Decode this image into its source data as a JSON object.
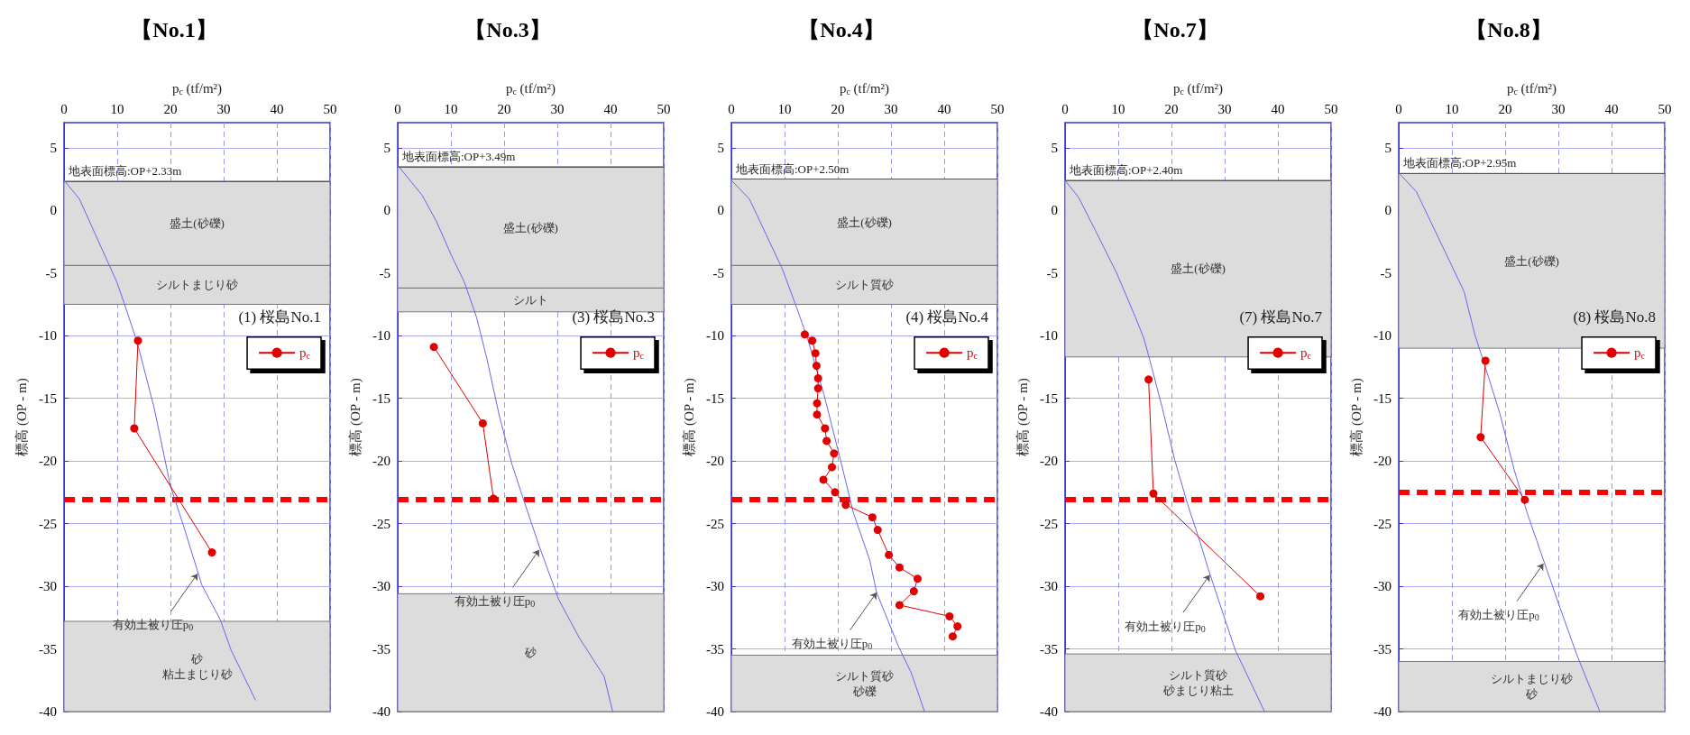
{
  "chart_data": [
    {
      "type": "line",
      "title": "【No.1】",
      "xlabel": "p$_{c}$ (tf/m²)",
      "ylabel": "標高 (OP - m)",
      "xlim": [
        0,
        50
      ],
      "xticks": [
        0,
        10,
        20,
        30,
        40,
        50
      ],
      "ylim": [
        -40,
        7
      ],
      "yticks": [
        -40,
        -35,
        -30,
        -25,
        -20,
        -15,
        -10,
        -5,
        0,
        5
      ],
      "grid": true,
      "legend": "right",
      "annotations": [
        "(1) 桜島No.1",
        {
          "text": "有効土被り圧p$_{0}$",
          "x": 25.1,
          "y": -29
        }
      ],
      "ref_lines": [
        {
          "axis": "y",
          "value": 2.33,
          "label": "地表面標高:OP+2.33m",
          "color": "#555555",
          "line_style": "solid"
        },
        {
          "axis": "y",
          "value": -23.1,
          "color": "#ff0000",
          "line_style": "dashed"
        }
      ],
      "bands": [
        {
          "axis": "y",
          "from": -4.4,
          "to": 2.33,
          "label": "盛土(砂礫)",
          "color": "#dcdcdc"
        },
        {
          "axis": "y",
          "from": -7.5,
          "to": -4.4,
          "label": "シルトまじり砂",
          "color": "#dcdcdc"
        },
        {
          "axis": "y",
          "from": -40,
          "to": -32.8,
          "label": [
            "砂",
            "粘土まじり砂"
          ],
          "color": "#dcdcdc"
        }
      ],
      "series": [
        {
          "color": "#6666ee",
          "marker": "none",
          "x": [
            0,
            2.9,
            9.9,
            11.3,
            13.8,
            16.9,
            20,
            22.4,
            25.9,
            29.4,
            31.4,
            36
          ],
          "values": [
            2.4,
            0.9,
            -5.7,
            -7.4,
            -10.6,
            -15.7,
            -22,
            -25.1,
            -29.9,
            -32.7,
            -35.1,
            -39.1
          ]
        },
        {
          "name": "p$_{c}$",
          "color": "#e00000",
          "marker": "circle",
          "x": [
            13.9,
            13.2,
            27.8
          ],
          "values": [
            -10.4,
            -17.4,
            -27.3
          ]
        }
      ]
    },
    {
      "type": "line",
      "title": "【No.3】",
      "xlabel": "p$_{c}$ (tf/m²)",
      "ylabel": "標高 (OP - m)",
      "xlim": [
        0,
        50
      ],
      "xticks": [
        0,
        10,
        20,
        30,
        40,
        50
      ],
      "ylim": [
        -40,
        7
      ],
      "yticks": [
        -40,
        -35,
        -30,
        -25,
        -20,
        -15,
        -10,
        -5,
        0,
        5
      ],
      "grid": true,
      "legend": "right",
      "annotations": [
        "(3) 桜島No.3",
        {
          "text": "有効土被り圧p$_{0}$",
          "x": 26.6,
          "y": -27.1
        }
      ],
      "ref_lines": [
        {
          "axis": "y",
          "value": 3.49,
          "label": "地表面標高:OP+3.49m",
          "color": "#555555",
          "line_style": "solid"
        },
        {
          "axis": "y",
          "value": -23.1,
          "color": "#ff0000",
          "line_style": "dashed"
        }
      ],
      "bands": [
        {
          "axis": "y",
          "from": -6.2,
          "to": 3.49,
          "label": "盛土(砂礫)",
          "color": "#dcdcdc"
        },
        {
          "axis": "y",
          "from": -8.1,
          "to": -6.2,
          "label": "シルト",
          "color": "#dcdcdc"
        },
        {
          "axis": "y",
          "from": -40,
          "to": -30.6,
          "label": "砂",
          "color": "#dcdcdc"
        }
      ],
      "series": [
        {
          "color": "#6666ee",
          "marker": "none",
          "x": [
            0,
            4.6,
            7.3,
            10.1,
            12.5,
            14.8,
            16.8,
            19.1,
            21.5,
            23.9,
            26.6,
            30.2,
            34.1,
            38.8,
            40.4
          ],
          "values": [
            3.6,
            1.2,
            -0.9,
            -3.6,
            -5.7,
            -8.5,
            -11.9,
            -16.4,
            -20.3,
            -23.4,
            -26.8,
            -31,
            -34.1,
            -37.2,
            -40
          ]
        },
        {
          "name": "p$_{c}$",
          "color": "#e00000",
          "marker": "circle",
          "x": [
            6.8,
            16,
            18
          ],
          "values": [
            -10.9,
            -17,
            -23
          ]
        }
      ]
    },
    {
      "type": "line",
      "title": "【No.4】",
      "xlabel": "p$_{c}$ (tf/m²)",
      "ylabel": "標高 (OP - m)",
      "xlim": [
        0,
        50
      ],
      "xticks": [
        0,
        10,
        20,
        30,
        40,
        50
      ],
      "ylim": [
        -40,
        7
      ],
      "yticks": [
        -40,
        -35,
        -30,
        -25,
        -20,
        -15,
        -10,
        -5,
        0,
        5
      ],
      "grid": true,
      "legend": "right",
      "annotations": [
        "(4) 桜島No.4",
        {
          "text": "有効土被り圧p$_{0}$",
          "x": 27.3,
          "y": -30.5
        }
      ],
      "ref_lines": [
        {
          "axis": "y",
          "value": 2.5,
          "label": "地表面標高:OP+2.50m",
          "color": "#555555",
          "line_style": "solid"
        },
        {
          "axis": "y",
          "value": -23.1,
          "color": "#ff0000",
          "line_style": "dashed"
        }
      ],
      "bands": [
        {
          "axis": "y",
          "from": -4.4,
          "to": 2.5,
          "label": "盛土(砂礫)",
          "color": "#dcdcdc"
        },
        {
          "axis": "y",
          "from": -7.5,
          "to": -4.4,
          "label": "シルト質砂",
          "color": "#dcdcdc"
        },
        {
          "axis": "y",
          "from": -40,
          "to": -35.5,
          "label": [
            "シルト質砂",
            "砂礫"
          ],
          "color": "#dcdcdc"
        }
      ],
      "series": [
        {
          "color": "#6666ee",
          "marker": "none",
          "x": [
            0,
            3.4,
            6.5,
            9.6,
            12.3,
            14.3,
            17.4,
            20.5,
            22.9,
            26,
            27.3,
            31.4,
            33.8,
            36.3
          ],
          "values": [
            2.4,
            0.9,
            -1.9,
            -4.7,
            -7.8,
            -10.2,
            -14.7,
            -19.9,
            -24.1,
            -27.9,
            -30.5,
            -34.8,
            -36.9,
            -40
          ]
        },
        {
          "name": "p$_{c}$",
          "color": "#e00000",
          "marker": "circle",
          "x": [
            13.8,
            15.2,
            15.8,
            16,
            16.3,
            16.3,
            16.1,
            16.1,
            17.6,
            17.9,
            19.3,
            18.9,
            17.3,
            19.5,
            21.5,
            26.5,
            27.5,
            29.6,
            31.6,
            35,
            34.3,
            31.6,
            41,
            42.5,
            41.6
          ],
          "values": [
            -9.9,
            -10.4,
            -11.4,
            -12.4,
            -13.4,
            -14.2,
            -15.4,
            -16.3,
            -17.4,
            -18.4,
            -19.4,
            -20.5,
            -21.5,
            -22.5,
            -23.5,
            -24.5,
            -25.5,
            -27.5,
            -28.5,
            -29.4,
            -30.4,
            -31.5,
            -32.4,
            -33.2,
            -34
          ]
        }
      ]
    },
    {
      "type": "line",
      "title": "【No.7】",
      "xlabel": "p$_{c}$ (tf/m²)",
      "ylabel": "標高 (OP - m)",
      "xlim": [
        0,
        50
      ],
      "xticks": [
        0,
        10,
        20,
        30,
        40,
        50
      ],
      "ylim": [
        -40,
        7
      ],
      "yticks": [
        -40,
        -35,
        -30,
        -25,
        -20,
        -15,
        -10,
        -5,
        0,
        5
      ],
      "grid": true,
      "legend": "right",
      "annotations": [
        "(7) 桜島No.7",
        {
          "text": "有効土被り圧p$_{0}$",
          "x": 27.2,
          "y": -29.1
        }
      ],
      "ref_lines": [
        {
          "axis": "y",
          "value": 2.4,
          "label": "地表面標高:OP+2.40m",
          "color": "#555555",
          "line_style": "solid"
        },
        {
          "axis": "y",
          "value": -23.1,
          "color": "#ff0000",
          "line_style": "dashed"
        }
      ],
      "bands": [
        {
          "axis": "y",
          "from": -11.7,
          "to": 2.4,
          "label": "盛土(砂礫)",
          "color": "#dcdcdc"
        },
        {
          "axis": "y",
          "from": -40,
          "to": -35.4,
          "label": [
            "シルト質砂",
            "砂まじり粘土"
          ],
          "color": "#dcdcdc"
        }
      ],
      "series": [
        {
          "color": "#6666ee",
          "marker": "none",
          "x": [
            0,
            2.6,
            5.7,
            9.7,
            13.2,
            14.8,
            15.9,
            18.3,
            20.6,
            23,
            25.4,
            26.9,
            30.1,
            32,
            37.5
          ],
          "values": [
            2.4,
            1,
            -1.6,
            -5,
            -8.5,
            -10.2,
            -11.9,
            -15.8,
            -19.9,
            -23.4,
            -26.5,
            -28.6,
            -32.7,
            -35.1,
            -40
          ]
        },
        {
          "name": "p$_{c}$",
          "color": "#e00000",
          "marker": "circle",
          "x": [
            15.7,
            16.6,
            36.7
          ],
          "values": [
            -13.5,
            -22.6,
            -30.8
          ]
        }
      ]
    },
    {
      "type": "line",
      "title": "【No.8】",
      "xlabel": "p$_{c}$ (tf/m²)",
      "ylabel": "標高 (OP - m)",
      "xlim": [
        0,
        50
      ],
      "xticks": [
        0,
        10,
        20,
        30,
        40,
        50
      ],
      "ylim": [
        -40,
        7
      ],
      "yticks": [
        -40,
        -35,
        -30,
        -25,
        -20,
        -15,
        -10,
        -5,
        0,
        5
      ],
      "grid": true,
      "legend": "right",
      "annotations": [
        "(8) 桜島No.8",
        {
          "text": "有効土被り圧p$_{0}$",
          "x": 27.2,
          "y": -28.2
        }
      ],
      "ref_lines": [
        {
          "axis": "y",
          "value": 2.95,
          "label": "地表面標高:OP+2.95m",
          "color": "#555555",
          "line_style": "solid"
        },
        {
          "axis": "y",
          "value": -22.5,
          "color": "#ff0000",
          "line_style": "dashed"
        }
      ],
      "bands": [
        {
          "axis": "y",
          "from": -11,
          "to": 2.95,
          "label": "盛土(砂礫)",
          "color": "#dcdcdc"
        },
        {
          "axis": "y",
          "from": -40,
          "to": -36,
          "label": [
            "シルトまじり砂",
            "砂"
          ],
          "color": "#dcdcdc"
        }
      ],
      "series": [
        {
          "color": "#6666ee",
          "marker": "none",
          "x": [
            0,
            3.3,
            6.8,
            9.95,
            12.3,
            14.3,
            16.2,
            19,
            21.7,
            24.1,
            27.2,
            30.3,
            33.5,
            37.8
          ],
          "values": [
            3,
            1.5,
            -1.6,
            -4.4,
            -6.5,
            -9.9,
            -12.4,
            -16.2,
            -20.7,
            -24.1,
            -27.9,
            -31.7,
            -35.5,
            -40
          ]
        },
        {
          "name": "p$_{c}$",
          "color": "#e00000",
          "marker": "circle",
          "x": [
            16.3,
            15.4,
            23.7
          ],
          "values": [
            -12,
            -18.1,
            -23.1
          ]
        }
      ]
    }
  ]
}
